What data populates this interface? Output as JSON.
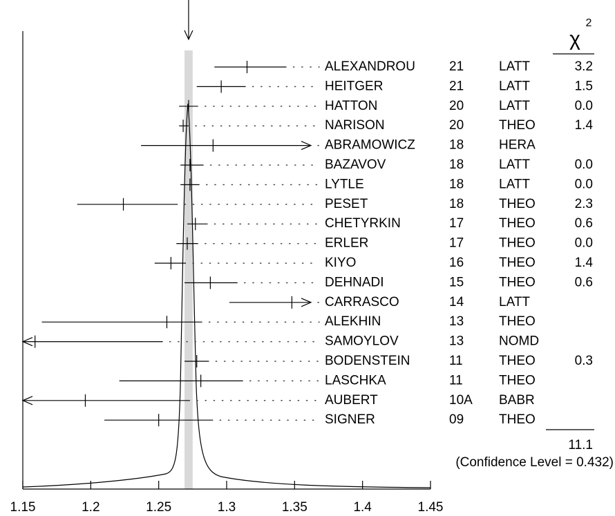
{
  "chart_data": {
    "type": "ideogram",
    "xlim": [
      1.15,
      1.45
    ],
    "xticks": [
      1.15,
      1.2,
      1.25,
      1.3,
      1.35,
      1.4,
      1.45
    ],
    "average": 1.272,
    "average_error": 0.003,
    "color": "#000000",
    "band_color": "#d9d9d9",
    "measurements": [
      {
        "name": "ALEXANDROU",
        "year": "21",
        "technique": "LATT",
        "value": 1.315,
        "errors": [
          0.024,
          0.029
        ],
        "chi2": 3.2,
        "chi2_label": "3.2"
      },
      {
        "name": "HEITGER",
        "year": "21",
        "technique": "LATT",
        "value": 1.296,
        "errors": [
          0.018,
          0.018
        ],
        "chi2": 1.5,
        "chi2_label": "1.5"
      },
      {
        "name": "HATTON",
        "year": "20",
        "technique": "LATT",
        "value": 1.272,
        "errors": [
          0.007,
          0.007
        ],
        "chi2": 0,
        "chi2_label": "0.0"
      },
      {
        "name": "NARISON",
        "year": "20",
        "technique": "THEO",
        "value": 1.268,
        "errors": [
          0.003,
          0.004
        ],
        "chi2": 1.4,
        "chi2_label": "1.4"
      },
      {
        "name": "ABRAMOWICZ",
        "year": "18",
        "technique": "HERA",
        "value": 1.29,
        "errors": [
          0.053,
          0.053
        ],
        "arrow": "right"
      },
      {
        "name": "BAZAVOV",
        "year": "18",
        "technique": "LATT",
        "value": 1.273,
        "errors": [
          0.007,
          0.01
        ],
        "chi2": 0,
        "chi2_label": "0.0"
      },
      {
        "name": "LYTLE",
        "year": "18",
        "technique": "LATT",
        "value": 1.273,
        "errors": [
          0.007,
          0.007
        ],
        "chi2": 0,
        "chi2_label": "0.0"
      },
      {
        "name": "PESET",
        "year": "18",
        "technique": "THEO",
        "value": 1.224,
        "errors": [
          0.034,
          0.04
        ],
        "chi2": 2.3,
        "chi2_label": "2.3"
      },
      {
        "name": "CHETYRKIN",
        "year": "17",
        "technique": "THEO",
        "value": 1.277,
        "errors": [
          0.006,
          0.009
        ],
        "chi2": 0.6,
        "chi2_label": "0.6"
      },
      {
        "name": "ERLER",
        "year": "17",
        "technique": "THEO",
        "value": 1.271,
        "errors": [
          0.008,
          0.008
        ],
        "chi2": 0,
        "chi2_label": "0.0"
      },
      {
        "name": "KIYO",
        "year": "16",
        "technique": "THEO",
        "value": 1.259,
        "errors": [
          0.012,
          0.011
        ],
        "chi2": 1.4,
        "chi2_label": "1.4"
      },
      {
        "name": "DEHNADI",
        "year": "15",
        "technique": "THEO",
        "value": 1.288,
        "errors": [
          0.019,
          0.02
        ],
        "chi2": 0.6,
        "chi2_label": "0.6"
      },
      {
        "name": "CARRASCO",
        "year": "14",
        "technique": "LATT",
        "value": 1.348,
        "errors": [
          0.046,
          0.046
        ],
        "arrow": "right"
      },
      {
        "name": "ALEKHIN",
        "year": "13",
        "technique": "THEO",
        "value": 1.256,
        "errors": [
          0.092,
          0.026
        ]
      },
      {
        "name": "SAMOYLOV",
        "year": "13",
        "technique": "NOMD",
        "value": 1.159,
        "errors": [
          0.094,
          0.094
        ],
        "arrow": "left"
      },
      {
        "name": "BODENSTEIN",
        "year": "11",
        "technique": "THEO",
        "value": 1.278,
        "errors": [
          0.009,
          0.009
        ],
        "chi2": 0.3,
        "chi2_label": "0.3"
      },
      {
        "name": "LASCHKA",
        "year": "11",
        "technique": "THEO",
        "value": 1.281,
        "errors": [
          0.06,
          0.031
        ]
      },
      {
        "name": "AUBERT",
        "year": "10A",
        "technique": "BABR",
        "value": 1.196,
        "errors": [
          0.077,
          0.077
        ],
        "arrow": "left"
      },
      {
        "name": "SIGNER",
        "year": "09",
        "technique": "THEO",
        "value": 1.25,
        "errors": [
          0.04,
          0.04
        ]
      }
    ],
    "chi2_symbol": "χ",
    "chi2_exponent": "2",
    "chi2_total": 11.1,
    "confidence_level": {
      "value": 0.432,
      "label": "(Confidence Level = 0.432)"
    }
  }
}
